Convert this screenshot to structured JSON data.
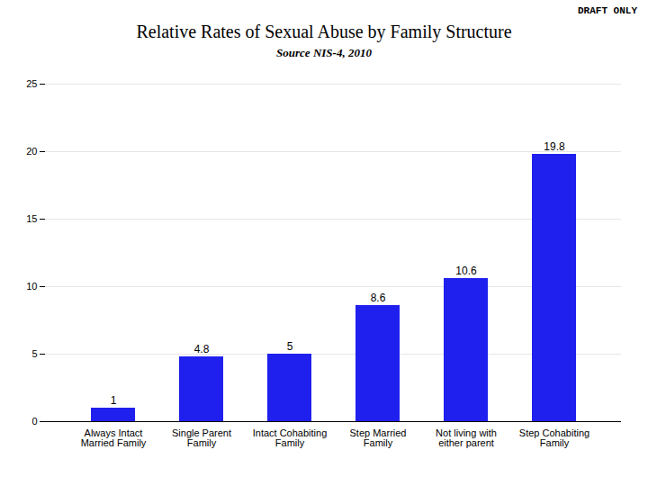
{
  "chart_data": {
    "type": "bar",
    "title": "Relative Rates of Sexual Abuse by Family Structure",
    "subtitle": "Source NIS-4, 2010",
    "annotations": [
      "DRAFT ONLY"
    ],
    "categories": [
      "Always Intact\nMarried Family",
      "Single Parent\nFamily",
      "Intact Cohabiting\nFamily",
      "Step Married\nFamily",
      "Not living with\neither parent",
      "Step Cohabiting\nFamily"
    ],
    "values": [
      1,
      4.8,
      5,
      8.6,
      10.6,
      19.8
    ],
    "color": "#2020ee",
    "ylim": [
      0,
      25
    ],
    "yticks": [
      0,
      5,
      10,
      15,
      20,
      25
    ],
    "grid": true,
    "data_labels": true
  }
}
